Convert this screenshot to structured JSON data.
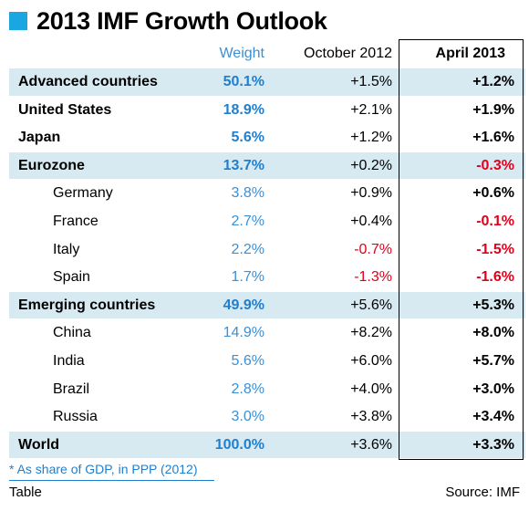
{
  "title": "2013 IMF Growth Outlook",
  "colors": {
    "accent": "#1aa6e0",
    "weight_text": "#3b8fd4",
    "negative": "#e0001b",
    "band": "#d7e9f1"
  },
  "chart_data": {
    "type": "table",
    "title": "2013 IMF Growth Outlook",
    "columns": [
      "Weight",
      "October 2012",
      "April 2013"
    ],
    "rows": [
      {
        "name": "Advanced countries",
        "weight": "50.1%",
        "oct": "+1.5%",
        "apr": "+1.2%",
        "bold": true,
        "band": true,
        "indent": false,
        "oct_neg": false,
        "apr_neg": false
      },
      {
        "name": "United States",
        "weight": "18.9%",
        "oct": "+2.1%",
        "apr": "+1.9%",
        "bold": true,
        "band": false,
        "indent": false,
        "oct_neg": false,
        "apr_neg": false
      },
      {
        "name": "Japan",
        "weight": "5.6%",
        "oct": "+1.2%",
        "apr": "+1.6%",
        "bold": true,
        "band": false,
        "indent": false,
        "oct_neg": false,
        "apr_neg": false
      },
      {
        "name": "Eurozone",
        "weight": "13.7%",
        "oct": "+0.2%",
        "apr": "-0.3%",
        "bold": true,
        "band": true,
        "indent": false,
        "oct_neg": false,
        "apr_neg": true
      },
      {
        "name": "Germany",
        "weight": "3.8%",
        "oct": "+0.9%",
        "apr": "+0.6%",
        "bold": false,
        "band": false,
        "indent": true,
        "oct_neg": false,
        "apr_neg": false
      },
      {
        "name": "France",
        "weight": "2.7%",
        "oct": "+0.4%",
        "apr": "-0.1%",
        "bold": false,
        "band": false,
        "indent": true,
        "oct_neg": false,
        "apr_neg": true
      },
      {
        "name": "Italy",
        "weight": "2.2%",
        "oct": "-0.7%",
        "apr": "-1.5%",
        "bold": false,
        "band": false,
        "indent": true,
        "oct_neg": true,
        "apr_neg": true
      },
      {
        "name": "Spain",
        "weight": "1.7%",
        "oct": "-1.3%",
        "apr": "-1.6%",
        "bold": false,
        "band": false,
        "indent": true,
        "oct_neg": true,
        "apr_neg": true
      },
      {
        "name": "Emerging countries",
        "weight": "49.9%",
        "oct": "+5.6%",
        "apr": "+5.3%",
        "bold": true,
        "band": true,
        "indent": false,
        "oct_neg": false,
        "apr_neg": false
      },
      {
        "name": "China",
        "weight": "14.9%",
        "oct": "+8.2%",
        "apr": "+8.0%",
        "bold": false,
        "band": false,
        "indent": true,
        "oct_neg": false,
        "apr_neg": false
      },
      {
        "name": "India",
        "weight": "5.6%",
        "oct": "+6.0%",
        "apr": "+5.7%",
        "bold": false,
        "band": false,
        "indent": true,
        "oct_neg": false,
        "apr_neg": false
      },
      {
        "name": "Brazil",
        "weight": "2.8%",
        "oct": "+4.0%",
        "apr": "+3.0%",
        "bold": false,
        "band": false,
        "indent": true,
        "oct_neg": false,
        "apr_neg": false
      },
      {
        "name": "Russia",
        "weight": "3.0%",
        "oct": "+3.8%",
        "apr": "+3.4%",
        "bold": false,
        "band": false,
        "indent": true,
        "oct_neg": false,
        "apr_neg": false
      },
      {
        "name": "World",
        "weight": "100.0%",
        "oct": "+3.6%",
        "apr": "+3.3%",
        "bold": true,
        "band": true,
        "indent": false,
        "oct_neg": false,
        "apr_neg": false
      }
    ],
    "footnote": "* As share of GDP, in PPP (2012)",
    "label": "Table",
    "source": "Source: IMF"
  }
}
